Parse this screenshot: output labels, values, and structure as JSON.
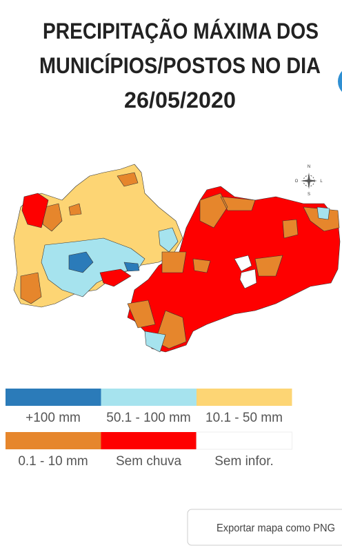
{
  "header": {
    "title_lines": [
      "PRECIPITAÇÃO MÁXIMA DOS",
      "MUNICÍPIOS/POSTOS NO DIA",
      "26/05/2020"
    ]
  },
  "compass": {
    "north": "N",
    "west": "O",
    "east": "L",
    "south": "S"
  },
  "legend": {
    "items": [
      {
        "label": "+100 mm",
        "color": "#2b7bb9"
      },
      {
        "label": "50.1 - 100 mm",
        "color": "#a6e3ee"
      },
      {
        "label": "10.1 - 50 mm",
        "color": "#fdd574"
      },
      {
        "label": "0.1 - 10 mm",
        "color": "#e6862c"
      },
      {
        "label": "Sem chuva",
        "color": "#fe0000"
      },
      {
        "label": "Sem infor.",
        "color": "#ffffff"
      }
    ]
  },
  "button": {
    "label": "Exportar mapa como PNG"
  }
}
